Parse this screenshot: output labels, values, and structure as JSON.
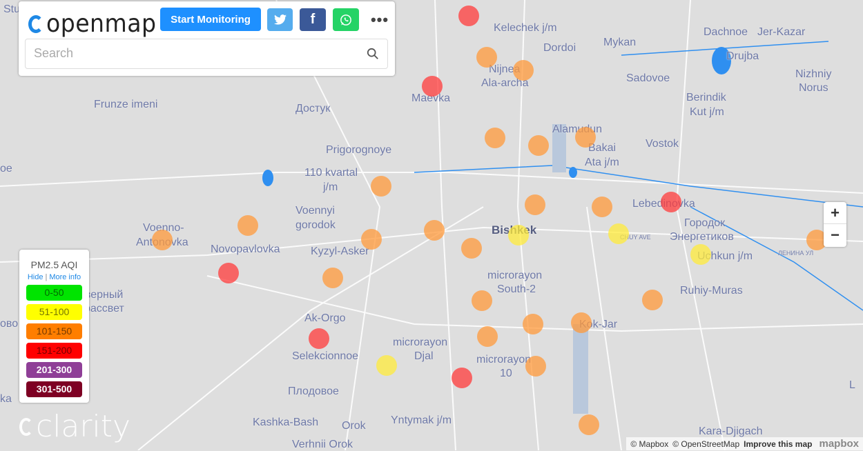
{
  "header": {
    "logo": "openmap",
    "start_label": "Start Monitoring",
    "share": [
      "twitter-icon",
      "facebook-icon",
      "whatsapp-icon"
    ],
    "facebook_glyph": "f",
    "more": "•••"
  },
  "search": {
    "placeholder": "Search",
    "value": ""
  },
  "legend": {
    "title": "PM2.5 AQI",
    "hide": "Hide",
    "more_info": "More info",
    "levels": [
      {
        "label": "0-50",
        "color": "#00e400"
      },
      {
        "label": "51-100",
        "color": "#ffff00"
      },
      {
        "label": "101-150",
        "color": "#ff7e00"
      },
      {
        "label": "151-200",
        "color": "#ff0000"
      },
      {
        "label": "201-300",
        "color": "#8f3f97"
      },
      {
        "label": "301-500",
        "color": "#7e0023"
      }
    ]
  },
  "brand": "clarity",
  "zoom": {
    "in": "+",
    "out": "−"
  },
  "attribution": {
    "mapbox": "© Mapbox",
    "osm": "© OpenStreetMap",
    "improve": "Improve this map",
    "logo": "mapbox"
  },
  "map_labels": [
    "Stu",
    "Kelechek j/m",
    "Dordoi",
    "Mykan",
    "Dachnoe",
    "Jer-Kazar",
    "Drujba",
    "Nijnea",
    "Ala-archa",
    "Maevka",
    "Sadovoe",
    "Nizhniy",
    "Norus",
    "Frunze imeni",
    "Достук",
    "Berindik",
    "Kut j/m",
    "Alamudun",
    "Prigorognoye",
    "Bakai",
    "Ata j/m",
    "Vostok",
    "oe",
    "110 kvartal",
    "j/m",
    "Lebedinovka",
    "Voennyi",
    "gorodok",
    "Городок",
    "Энергетиков",
    "Voenno-",
    "Antonovka",
    "Bishkek",
    "Novopavlovka",
    "Kyzyl-Asker",
    "Uchkun j/m",
    "microrayon",
    "South-2",
    "Ruhiy-Muras",
    "еверный",
    "рассвет",
    "ово",
    "Ak-Orgo",
    "Kok-Jar",
    "microrayon",
    "Djal",
    "Selekcionnoe",
    "microrayon",
    "10",
    "Плодовое",
    "Kashka-Bash",
    "Orok",
    "Yntymak j/m",
    "Kara-Djigach",
    "Verhnii Orok",
    "ka",
    "L",
    "CHUY AVE",
    "ЛЕНИНА УЛ"
  ],
  "markers": [
    "red",
    "orange",
    "orange",
    "red",
    "orange",
    "orange",
    "orange",
    "orange",
    "orange",
    "orange",
    "red",
    "orange",
    "orange",
    "orange",
    "orange",
    "orange",
    "yellow",
    "yellow",
    "yellow",
    "orange",
    "red",
    "orange",
    "orange",
    "orange",
    "orange",
    "orange",
    "orange",
    "red",
    "yellow",
    "red",
    "orange",
    "orange"
  ],
  "marker_colors": {
    "red": "#ff3b3b",
    "orange": "#ff9a3b",
    "yellow": "#ffeb3b"
  }
}
